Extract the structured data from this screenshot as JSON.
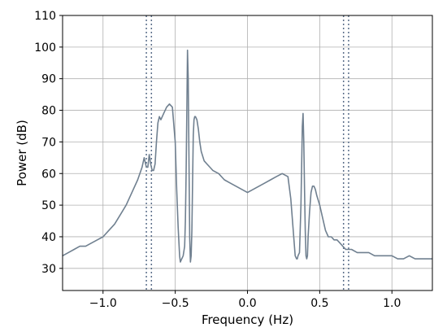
{
  "chart_data": {
    "type": "line",
    "title": "",
    "xlabel": "Frequency (Hz)",
    "ylabel": "Power (dB)",
    "xlim": [
      -1.28,
      1.28
    ],
    "ylim": [
      23,
      110
    ],
    "xticks": [
      -1.0,
      -0.5,
      0.0,
      0.5,
      1.0
    ],
    "xtick_labels": [
      "−1.0",
      "−0.5",
      "0.0",
      "0.5",
      "1.0"
    ],
    "yticks": [
      30,
      40,
      50,
      60,
      70,
      80,
      90,
      100,
      110
    ],
    "ytick_labels": [
      "30",
      "40",
      "50",
      "60",
      "70",
      "80",
      "90",
      "100",
      "110"
    ],
    "grid": true,
    "series": [
      {
        "color": "#708090",
        "x": [
          -1.28,
          -1.24,
          -1.2,
          -1.16,
          -1.12,
          -1.08,
          -1.04,
          -1.0,
          -0.96,
          -0.92,
          -0.88,
          -0.84,
          -0.8,
          -0.76,
          -0.73,
          -0.715,
          -0.7,
          -0.69,
          -0.68,
          -0.67,
          -0.66,
          -0.65,
          -0.64,
          -0.63,
          -0.62,
          -0.61,
          -0.6,
          -0.58,
          -0.56,
          -0.54,
          -0.52,
          -0.5,
          -0.49,
          -0.48,
          -0.47,
          -0.465,
          -0.455,
          -0.445,
          -0.435,
          -0.43,
          -0.425,
          -0.42,
          -0.415,
          -0.41,
          -0.405,
          -0.4,
          -0.395,
          -0.39,
          -0.385,
          -0.38,
          -0.375,
          -0.37,
          -0.365,
          -0.36,
          -0.35,
          -0.34,
          -0.33,
          -0.32,
          -0.3,
          -0.28,
          -0.26,
          -0.24,
          -0.2,
          -0.16,
          -0.12,
          -0.08,
          -0.04,
          0.0,
          0.04,
          0.08,
          0.12,
          0.16,
          0.2,
          0.24,
          0.28,
          0.3,
          0.32,
          0.33,
          0.34,
          0.345,
          0.35,
          0.36,
          0.37,
          0.38,
          0.385,
          0.39,
          0.395,
          0.4,
          0.405,
          0.41,
          0.415,
          0.42,
          0.43,
          0.44,
          0.45,
          0.46,
          0.47,
          0.48,
          0.5,
          0.52,
          0.54,
          0.56,
          0.58,
          0.6,
          0.62,
          0.64,
          0.66,
          0.68,
          0.7,
          0.72,
          0.76,
          0.8,
          0.84,
          0.88,
          0.92,
          0.96,
          1.0,
          1.04,
          1.08,
          1.12,
          1.16,
          1.2,
          1.24,
          1.28
        ],
        "y": [
          34,
          35,
          36,
          37,
          37,
          38,
          39,
          40,
          42,
          44,
          47,
          50,
          54,
          58,
          62,
          65,
          62,
          62,
          66,
          63,
          61,
          61,
          63,
          70,
          76,
          78,
          77,
          79,
          81,
          82,
          81,
          70,
          55,
          43,
          34,
          32,
          33,
          34,
          37,
          45,
          60,
          80,
          99,
          90,
          65,
          40,
          32,
          34,
          42,
          58,
          72,
          77,
          78,
          78,
          77,
          74,
          70,
          67,
          64,
          63,
          62,
          61,
          60,
          58,
          57,
          56,
          55,
          54,
          55,
          56,
          57,
          58,
          59,
          60,
          59,
          52,
          40,
          34,
          33,
          33,
          34,
          35,
          50,
          75,
          79,
          70,
          55,
          42,
          34,
          33,
          34,
          40,
          48,
          54,
          56,
          56,
          55,
          53,
          50,
          46,
          42,
          40,
          40,
          39,
          39,
          38,
          37,
          36,
          36,
          36,
          35,
          35,
          35,
          34,
          34,
          34,
          34,
          33,
          33,
          34,
          33,
          33,
          33,
          33
        ]
      }
    ],
    "vlines": [
      -0.7,
      -0.665,
      0.665,
      0.7
    ],
    "vline_color": "#5a6e8a"
  }
}
